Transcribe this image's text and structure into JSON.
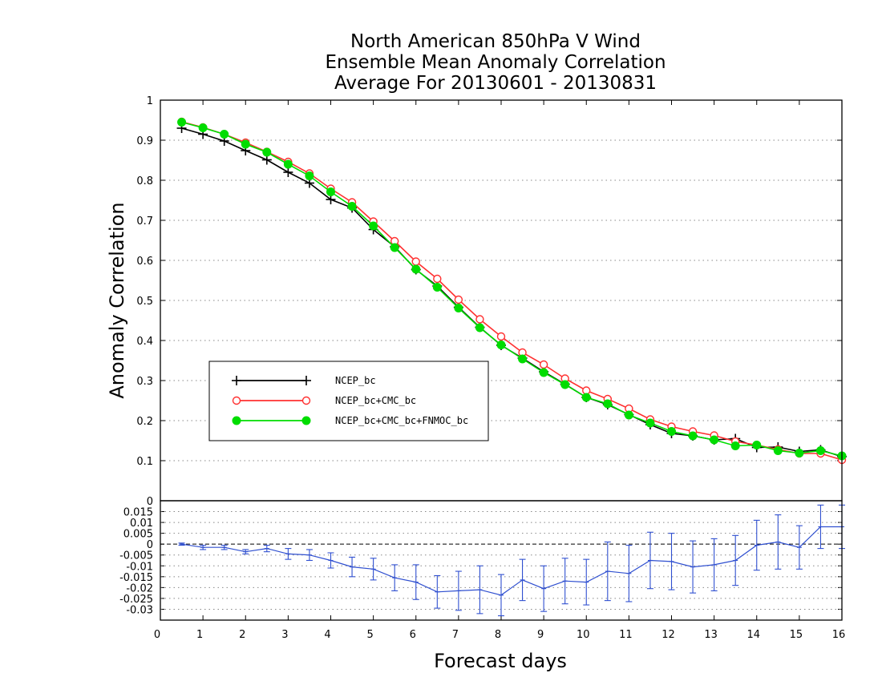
{
  "chart_data": [
    {
      "type": "line",
      "title_lines": [
        "North American 850hPa V Wind",
        "Ensemble Mean Anomaly Correlation",
        "Average For 20130601 - 20130831"
      ],
      "xlabel": "Forecast days",
      "ylabel": "Anomaly Correlation",
      "xlim": [
        0,
        16
      ],
      "ylim": [
        0,
        1
      ],
      "x_ticks": [
        "0",
        "1",
        "2",
        "3",
        "4",
        "5",
        "6",
        "7",
        "8",
        "9",
        "10",
        "11",
        "12",
        "13",
        "14",
        "15",
        "16"
      ],
      "y_ticks": [
        "0",
        "0.1",
        "0.2",
        "0.3",
        "0.4",
        "0.5",
        "0.6",
        "0.7",
        "0.8",
        "0.9",
        "1"
      ],
      "grid": true,
      "legend_position": "center-left",
      "x": [
        0.5,
        1,
        1.5,
        2,
        2.5,
        3,
        3.5,
        4,
        4.5,
        5,
        5.5,
        6,
        6.5,
        7,
        7.5,
        8,
        8.5,
        9,
        9.5,
        10,
        10.5,
        11,
        11.5,
        12,
        12.5,
        13,
        13.5,
        14,
        14.5,
        15,
        15.5,
        16
      ],
      "series": [
        {
          "name": "NCEP_bc",
          "color": "#000000",
          "marker": "plus",
          "values": [
            0.93,
            0.915,
            0.898,
            0.874,
            0.851,
            0.82,
            0.793,
            0.752,
            0.731,
            0.677,
            0.634,
            0.577,
            0.536,
            0.483,
            0.433,
            0.388,
            0.356,
            0.322,
            0.291,
            0.258,
            0.24,
            0.215,
            0.19,
            0.168,
            0.162,
            0.152,
            0.155,
            0.133,
            0.134,
            0.123,
            0.127,
            0.11
          ]
        },
        {
          "name": "NCEP_bc+CMC_bc",
          "color": "#ff3030",
          "marker": "open-circle",
          "values": [
            0.946,
            0.932,
            0.915,
            0.894,
            0.871,
            0.846,
            0.817,
            0.779,
            0.745,
            0.697,
            0.648,
            0.597,
            0.554,
            0.502,
            0.453,
            0.41,
            0.37,
            0.34,
            0.305,
            0.275,
            0.254,
            0.23,
            0.203,
            0.185,
            0.173,
            0.163,
            0.148,
            0.139,
            0.128,
            0.118,
            0.118,
            0.102
          ]
        },
        {
          "name": "NCEP_bc+CMC_bc+FNMOC_bc",
          "color": "#00dd00",
          "marker": "filled-circle",
          "values": [
            0.945,
            0.931,
            0.915,
            0.89,
            0.87,
            0.84,
            0.811,
            0.771,
            0.735,
            0.686,
            0.632,
            0.578,
            0.533,
            0.481,
            0.432,
            0.389,
            0.354,
            0.32,
            0.29,
            0.258,
            0.242,
            0.214,
            0.194,
            0.173,
            0.162,
            0.152,
            0.137,
            0.139,
            0.125,
            0.119,
            0.125,
            0.112
          ]
        }
      ]
    },
    {
      "type": "line",
      "xlim": [
        0,
        16
      ],
      "ylim": [
        -0.035,
        0.02
      ],
      "y_ticks": [
        "0.015",
        "0.01",
        "0.005",
        "0",
        "-0.005",
        "-0.01",
        "-0.015",
        "-0.02",
        "-0.025",
        "-0.03"
      ],
      "y_tick_values": [
        0.015,
        0.01,
        0.005,
        0,
        -0.005,
        -0.01,
        -0.015,
        -0.02,
        -0.025,
        -0.03
      ],
      "zero_line": true,
      "series": [
        {
          "color": "#3050d0",
          "error_bars": true,
          "x": [
            0.5,
            1,
            1.5,
            2,
            2.5,
            3,
            3.5,
            4,
            4.5,
            5,
            5.5,
            6,
            6.5,
            7,
            7.5,
            8,
            8.5,
            9,
            9.5,
            10,
            10.5,
            11,
            11.5,
            12,
            12.5,
            13,
            13.5,
            14,
            14.5,
            15,
            15.5,
            16
          ],
          "values": [
            0.0,
            -0.0015,
            -0.0015,
            -0.0035,
            -0.002,
            -0.0045,
            -0.005,
            -0.0075,
            -0.0105,
            -0.0115,
            -0.0155,
            -0.0175,
            -0.022,
            -0.0215,
            -0.021,
            -0.0235,
            -0.0165,
            -0.0205,
            -0.017,
            -0.0175,
            -0.0125,
            -0.0135,
            -0.0075,
            -0.008,
            -0.0105,
            -0.0095,
            -0.0075,
            -0.0005,
            0.001,
            -0.0015,
            0.008,
            0.008
          ],
          "errors": [
            0.0005,
            0.001,
            0.001,
            0.001,
            0.0015,
            0.0025,
            0.0025,
            0.0035,
            0.0045,
            0.005,
            0.006,
            0.008,
            0.0075,
            0.009,
            0.011,
            0.0095,
            0.0095,
            0.0105,
            0.0105,
            0.0105,
            0.0135,
            0.013,
            0.013,
            0.013,
            0.012,
            0.012,
            0.0115,
            0.0115,
            0.0125,
            0.01,
            0.01,
            0.01
          ]
        }
      ]
    }
  ]
}
